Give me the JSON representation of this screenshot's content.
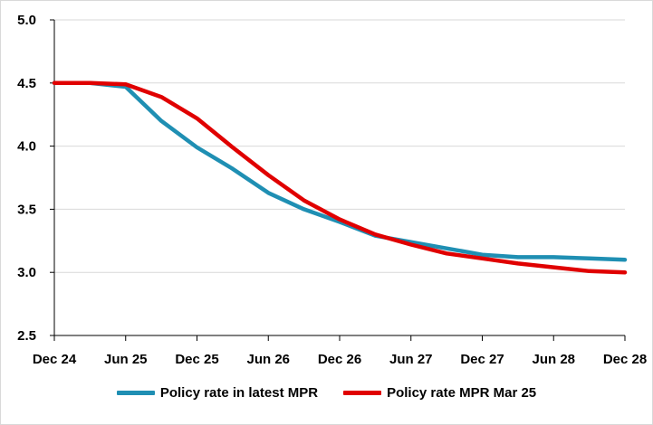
{
  "chart_data": {
    "type": "line",
    "title": "",
    "xlabel": "",
    "ylabel": "",
    "x": [
      "Dec 24",
      "Mar 25",
      "Jun 25",
      "Sep 25",
      "Dec 25",
      "Mar 26",
      "Jun 26",
      "Sep 26",
      "Dec 26",
      "Mar 27",
      "Jun 27",
      "Sep 27",
      "Dec 27",
      "Mar 28",
      "Jun 28",
      "Sep 28",
      "Dec 28"
    ],
    "x_ticks": [
      "Dec 24",
      "Jun 25",
      "Dec 25",
      "Jun 26",
      "Dec 26",
      "Jun 27",
      "Dec 27",
      "Jun 28",
      "Dec 28"
    ],
    "ylim": [
      2.5,
      5.0
    ],
    "y_ticks": [
      "5.0",
      "4.5",
      "4.0",
      "3.5",
      "3.0",
      "2.5"
    ],
    "grid": "horizontal",
    "legend_position": "bottom",
    "series": [
      {
        "name": "Policy rate in latest MPR",
        "color": "#1f8fb3",
        "values": [
          4.5,
          4.5,
          4.47,
          4.2,
          3.99,
          3.82,
          3.63,
          3.5,
          3.4,
          3.29,
          3.24,
          3.19,
          3.14,
          3.12,
          3.12,
          3.11,
          3.1
        ]
      },
      {
        "name": "Policy rate MPR Mar 25",
        "color": "#e00000",
        "values": [
          4.5,
          4.5,
          4.49,
          4.39,
          4.22,
          3.99,
          3.77,
          3.57,
          3.42,
          3.3,
          3.22,
          3.15,
          3.11,
          3.07,
          3.04,
          3.01,
          3.0
        ]
      }
    ]
  }
}
